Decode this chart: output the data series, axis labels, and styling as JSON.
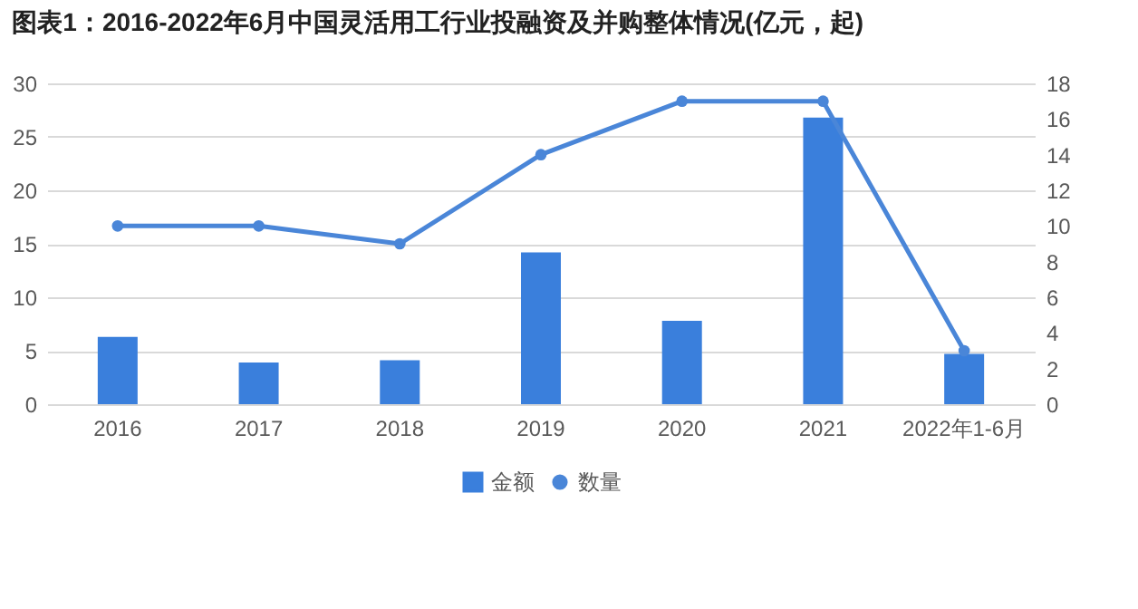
{
  "chart_data": {
    "type": "bar",
    "title": "图表1：2016-2022年6月中国灵活用工行业投融资及并购整体情况(亿元，起)",
    "categories": [
      "2016",
      "2017",
      "2018",
      "2019",
      "2020",
      "2021",
      "2022年1-6月"
    ],
    "series": [
      {
        "name": "金额",
        "color": "#3a7fdc",
        "values": [
          6.3,
          3.9,
          4.1,
          14.2,
          7.8,
          26.8,
          4.7
        ]
      },
      {
        "name": "数量",
        "type": "line",
        "axis": "y2",
        "color": "#4a86d8",
        "marker": "circle",
        "values": [
          10,
          10,
          9,
          14,
          17,
          17,
          3
        ]
      }
    ],
    "ylim": [
      0,
      30
    ],
    "yticks": [
      0,
      5,
      10,
      15,
      20,
      25,
      30
    ],
    "y2lim": [
      0,
      18
    ],
    "y2ticks": [
      0,
      2,
      4,
      6,
      8,
      10,
      12,
      14,
      16,
      18
    ],
    "grid": "y",
    "legend": "bottom"
  }
}
